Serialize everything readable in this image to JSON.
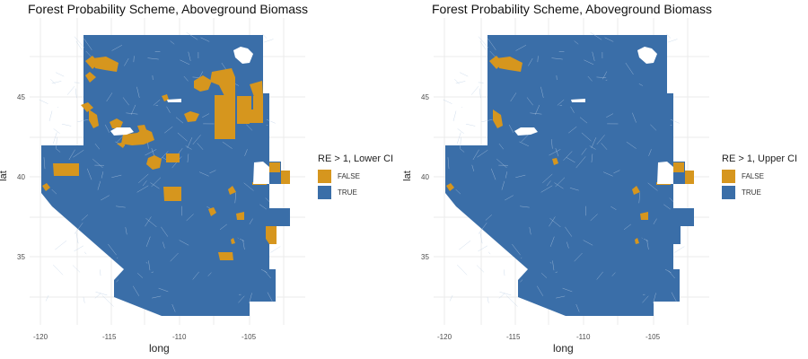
{
  "colors": {
    "false": "#D6961E",
    "true": "#3A6EA8",
    "grid": "#EBEBEB",
    "border": "#B8CCE3"
  },
  "panels": [
    {
      "title": "Forest Probability Scheme, Aboveground Biomass",
      "xlabel": "long",
      "ylabel": "lat",
      "x_ticks": [
        "-120",
        "-115",
        "-110",
        "-105"
      ],
      "y_ticks": [
        "35",
        "40",
        "45"
      ],
      "legend": {
        "title": "RE > 1, Lower CI",
        "false_label": "FALSE",
        "true_label": "TRUE"
      }
    },
    {
      "title": "Forest Probability Scheme, Aboveground Biomass",
      "xlabel": "long",
      "ylabel": "lat",
      "x_ticks": [
        "-120",
        "-115",
        "-110",
        "-105"
      ],
      "y_ticks": [
        "35",
        "40",
        "45"
      ],
      "legend": {
        "title": "RE > 1, Upper CI",
        "false_label": "FALSE",
        "true_label": "TRUE"
      }
    }
  ]
}
